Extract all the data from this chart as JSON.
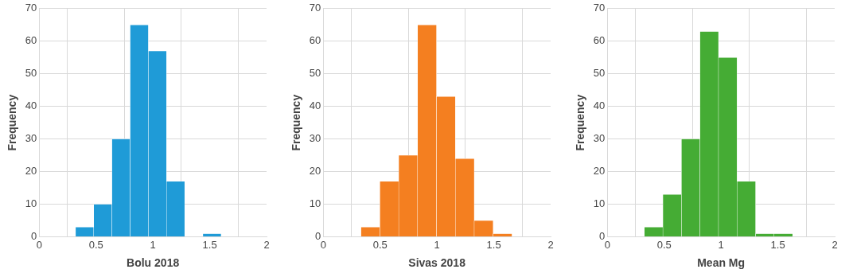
{
  "chart_data": [
    {
      "type": "histogram",
      "xlabel": "Bolu 2018",
      "ylabel": "Frequency",
      "bins": [
        0,
        0.16,
        0.32,
        0.48,
        0.64,
        0.8,
        0.96,
        1.12,
        1.28,
        1.44,
        1.6
      ],
      "values": [
        0,
        0,
        3,
        10,
        30,
        65,
        57,
        17,
        0,
        1
      ],
      "color": "#1f9bd7",
      "xlim": [
        0,
        2
      ],
      "xticks": [
        0,
        0.5,
        1,
        1.5,
        2
      ],
      "ylim": [
        0,
        70
      ],
      "yticks": [
        0,
        10,
        20,
        30,
        40,
        50,
        60,
        70
      ],
      "grid": true
    },
    {
      "type": "histogram",
      "xlabel": "Sivas 2018",
      "ylabel": "Frequency",
      "bins": [
        0,
        0.166,
        0.332,
        0.498,
        0.664,
        0.83,
        0.996,
        1.162,
        1.328,
        1.494,
        1.66
      ],
      "values": [
        0,
        0,
        3,
        17,
        25,
        65,
        43,
        24,
        5,
        1
      ],
      "color": "#f47f20",
      "xlim": [
        0,
        2
      ],
      "xticks": [
        0,
        0.5,
        1,
        1.5,
        2
      ],
      "ylim": [
        0,
        70
      ],
      "yticks": [
        0,
        10,
        20,
        30,
        40,
        50,
        60,
        70
      ],
      "grid": true
    },
    {
      "type": "histogram",
      "xlabel": "Mean Mg",
      "ylabel": "Frequency",
      "bins": [
        0,
        0.163,
        0.326,
        0.489,
        0.652,
        0.815,
        0.978,
        1.141,
        1.304,
        1.467,
        1.63
      ],
      "values": [
        0,
        0,
        3,
        13,
        30,
        63,
        55,
        17,
        1,
        1
      ],
      "color": "#45ac34",
      "xlim": [
        0,
        2
      ],
      "xticks": [
        0,
        0.5,
        1,
        1.5,
        2
      ],
      "ylim": [
        0,
        70
      ],
      "yticks": [
        0,
        10,
        20,
        30,
        40,
        50,
        60,
        70
      ],
      "grid": true
    }
  ]
}
